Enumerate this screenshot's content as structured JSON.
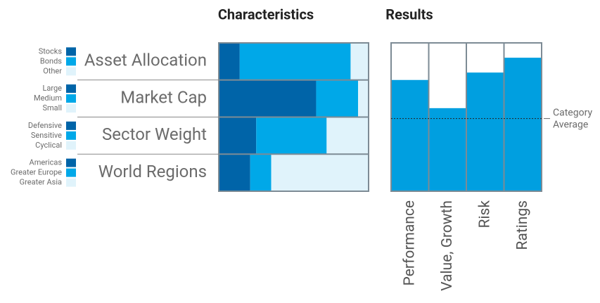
{
  "chart_data": [
    {
      "type": "stacked_bar_h",
      "title": "Characteristics",
      "xlim": [
        0,
        100
      ],
      "rows": [
        {
          "label": "Asset Allocation",
          "segments": [
            {
              "name": "Stocks",
              "value": 14,
              "color": "#0064a8"
            },
            {
              "name": "Bonds",
              "value": 74,
              "color": "#00a8e8"
            },
            {
              "name": "Other",
              "value": 12,
              "color": "#e0f3fb"
            }
          ]
        },
        {
          "label": "Market Cap",
          "segments": [
            {
              "name": "Large",
              "value": 65,
              "color": "#0064a8"
            },
            {
              "name": "Medium",
              "value": 28,
              "color": "#00a8e8"
            },
            {
              "name": "Small",
              "value": 7,
              "color": "#e0f3fb"
            }
          ]
        },
        {
          "label": "Sector Weight",
          "segments": [
            {
              "name": "Defensive",
              "value": 25,
              "color": "#0064a8"
            },
            {
              "name": "Sensitive",
              "value": 47,
              "color": "#00a8e8"
            },
            {
              "name": "Cyclical",
              "value": 28,
              "color": "#e0f3fb"
            }
          ]
        },
        {
          "label": "World Regions",
          "segments": [
            {
              "name": "Americas",
              "value": 21,
              "color": "#0064a8"
            },
            {
              "name": "Greater Europe",
              "value": 14,
              "color": "#00a8e8"
            },
            {
              "name": "Greater Asia",
              "value": 65,
              "color": "#e0f3fb"
            }
          ]
        }
      ]
    },
    {
      "type": "bar",
      "title": "Results",
      "categories": [
        "Performance",
        "Value, Growth",
        "Risk",
        "Ratings"
      ],
      "values": [
        75,
        56,
        80,
        90
      ],
      "color": "#009fe0",
      "ylim": [
        0,
        100
      ],
      "reference": {
        "label": [
          "Category",
          "Average"
        ],
        "value": 49
      }
    }
  ]
}
